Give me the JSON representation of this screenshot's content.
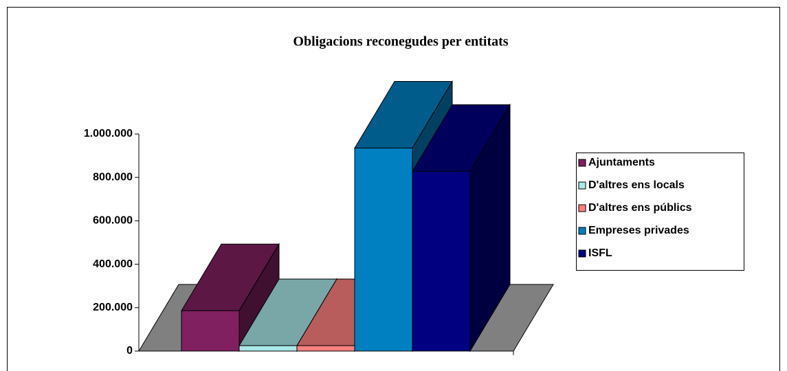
{
  "chart_data": {
    "type": "bar3d",
    "title": "Obligacions reconegudes per entitats",
    "series": [
      {
        "name": "Ajuntaments",
        "color": "#802060",
        "values": [
          186000
        ]
      },
      {
        "name": "D'altres ens locals",
        "color": "#a8e8e8",
        "values": [
          25000
        ]
      },
      {
        "name": "D'altres ens públics",
        "color": "#ff8080",
        "values": [
          25000
        ]
      },
      {
        "name": "Empreses privades",
        "color": "#0080c0",
        "values": [
          935000
        ]
      },
      {
        "name": "ISFL",
        "color": "#000080",
        "values": [
          828000
        ]
      }
    ],
    "ylim": [
      0,
      1000000
    ],
    "yticks": [
      0,
      {
        "value": 200000,
        "label": "200.000"
      },
      {
        "value": 400000,
        "label": "400.000"
      },
      {
        "value": 600000,
        "label": "600.000"
      },
      {
        "value": 800000,
        "label": "800.000"
      },
      {
        "value": 1000000,
        "label": "1.000.000"
      }
    ],
    "legend": "right"
  }
}
